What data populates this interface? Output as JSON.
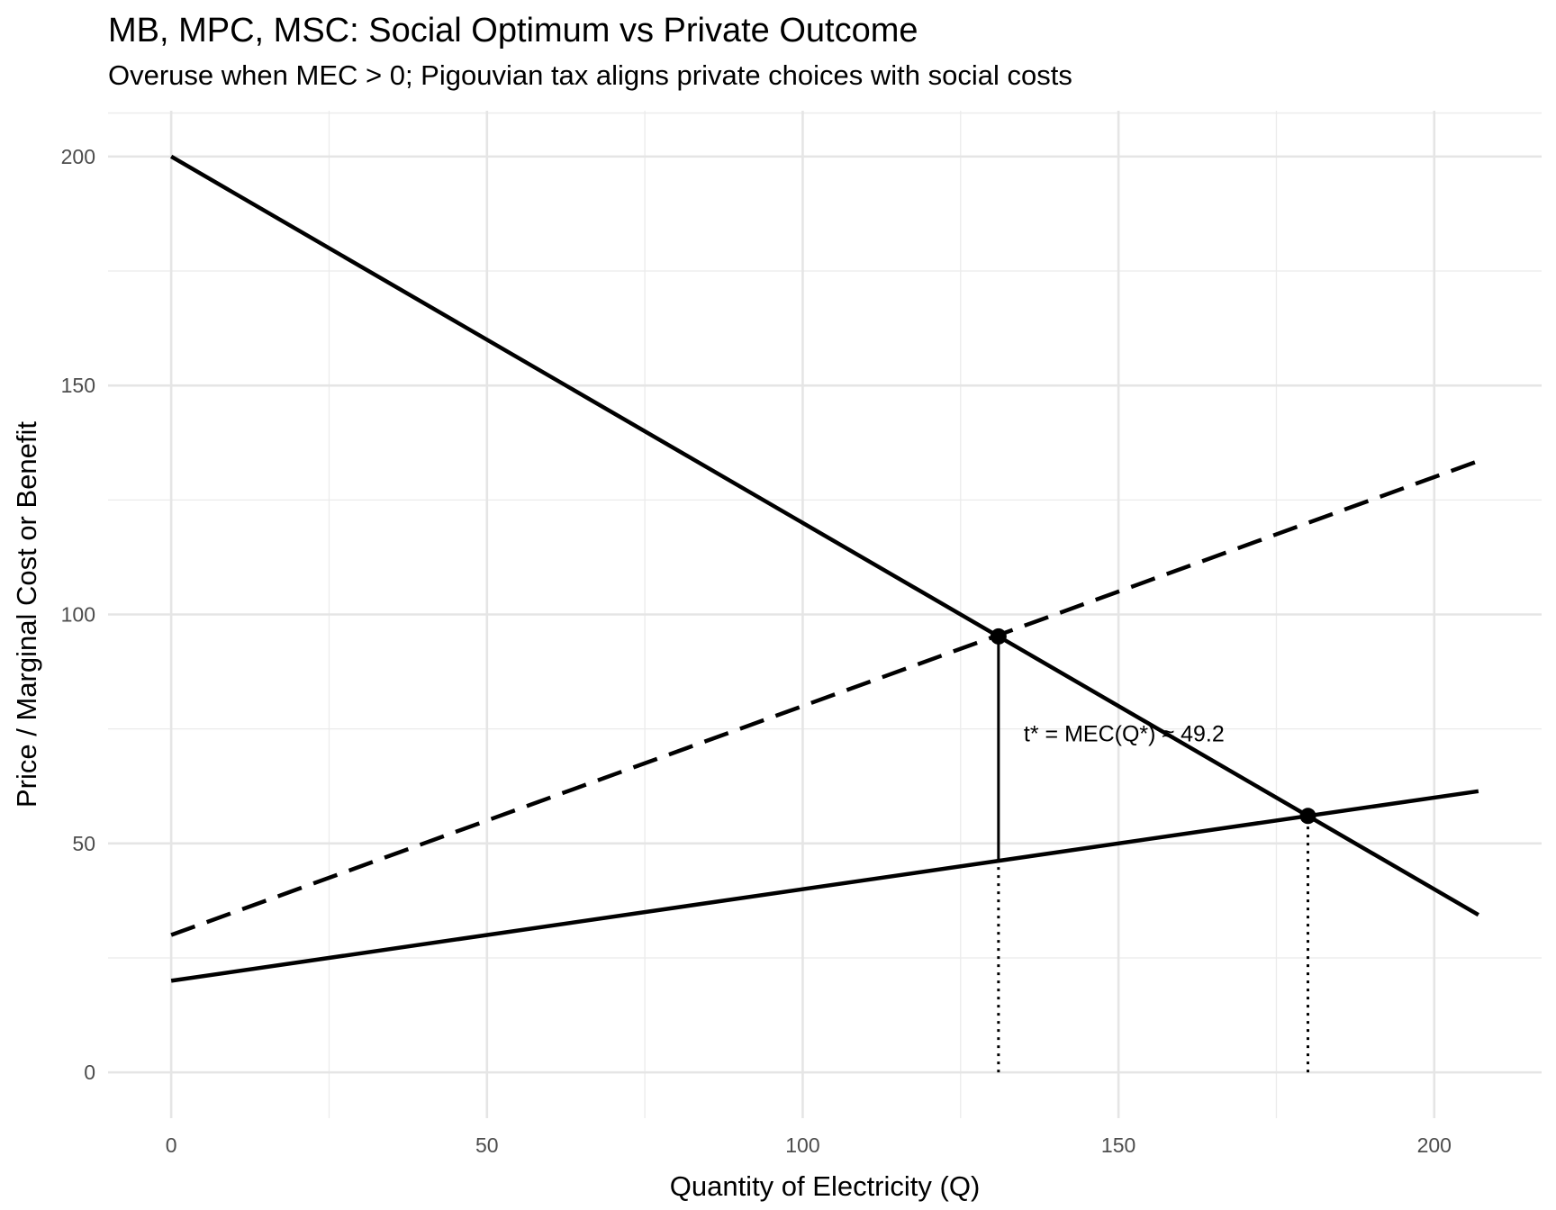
{
  "chart_data": {
    "type": "line",
    "title": "MB, MPC, MSC: Social Optimum vs Private Outcome",
    "subtitle": "Overuse when MEC > 0; Pigouvian tax aligns private choices with social costs",
    "xlabel": "Quantity of Electricity (Q)",
    "ylabel": "Price / Marginal Cost or Benefit",
    "xlim": [
      -10,
      217
    ],
    "ylim": [
      -10,
      210
    ],
    "x_ticks": [
      0,
      50,
      100,
      150,
      200
    ],
    "y_ticks": [
      0,
      50,
      100,
      150,
      200
    ],
    "grid": true,
    "legend": "none",
    "series": [
      {
        "x": [
          0,
          207
        ],
        "values": [
          200,
          34.4
        ],
        "style": "solid"
      },
      {
        "x": [
          0,
          207
        ],
        "values": [
          30,
          133.5
        ],
        "style": "dashed"
      },
      {
        "x": [
          0,
          207
        ],
        "values": [
          20,
          61.4
        ],
        "style": "solid"
      }
    ],
    "points": [
      {
        "x": 131,
        "y": 95.2
      },
      {
        "x": 180,
        "y": 56
      }
    ],
    "segments": [
      {
        "x": [
          131,
          131
        ],
        "y": [
          46.2,
          95.2
        ],
        "style": "solid"
      },
      {
        "x": [
          131,
          131
        ],
        "y": [
          0,
          46.2
        ],
        "style": "dotted"
      },
      {
        "x": [
          180,
          180
        ],
        "y": [
          0,
          56
        ],
        "style": "dotted"
      }
    ],
    "annotations": [
      {
        "text": "t* = MEC(Q*) ≈ 49.2",
        "x": 135,
        "y": 74
      }
    ]
  }
}
